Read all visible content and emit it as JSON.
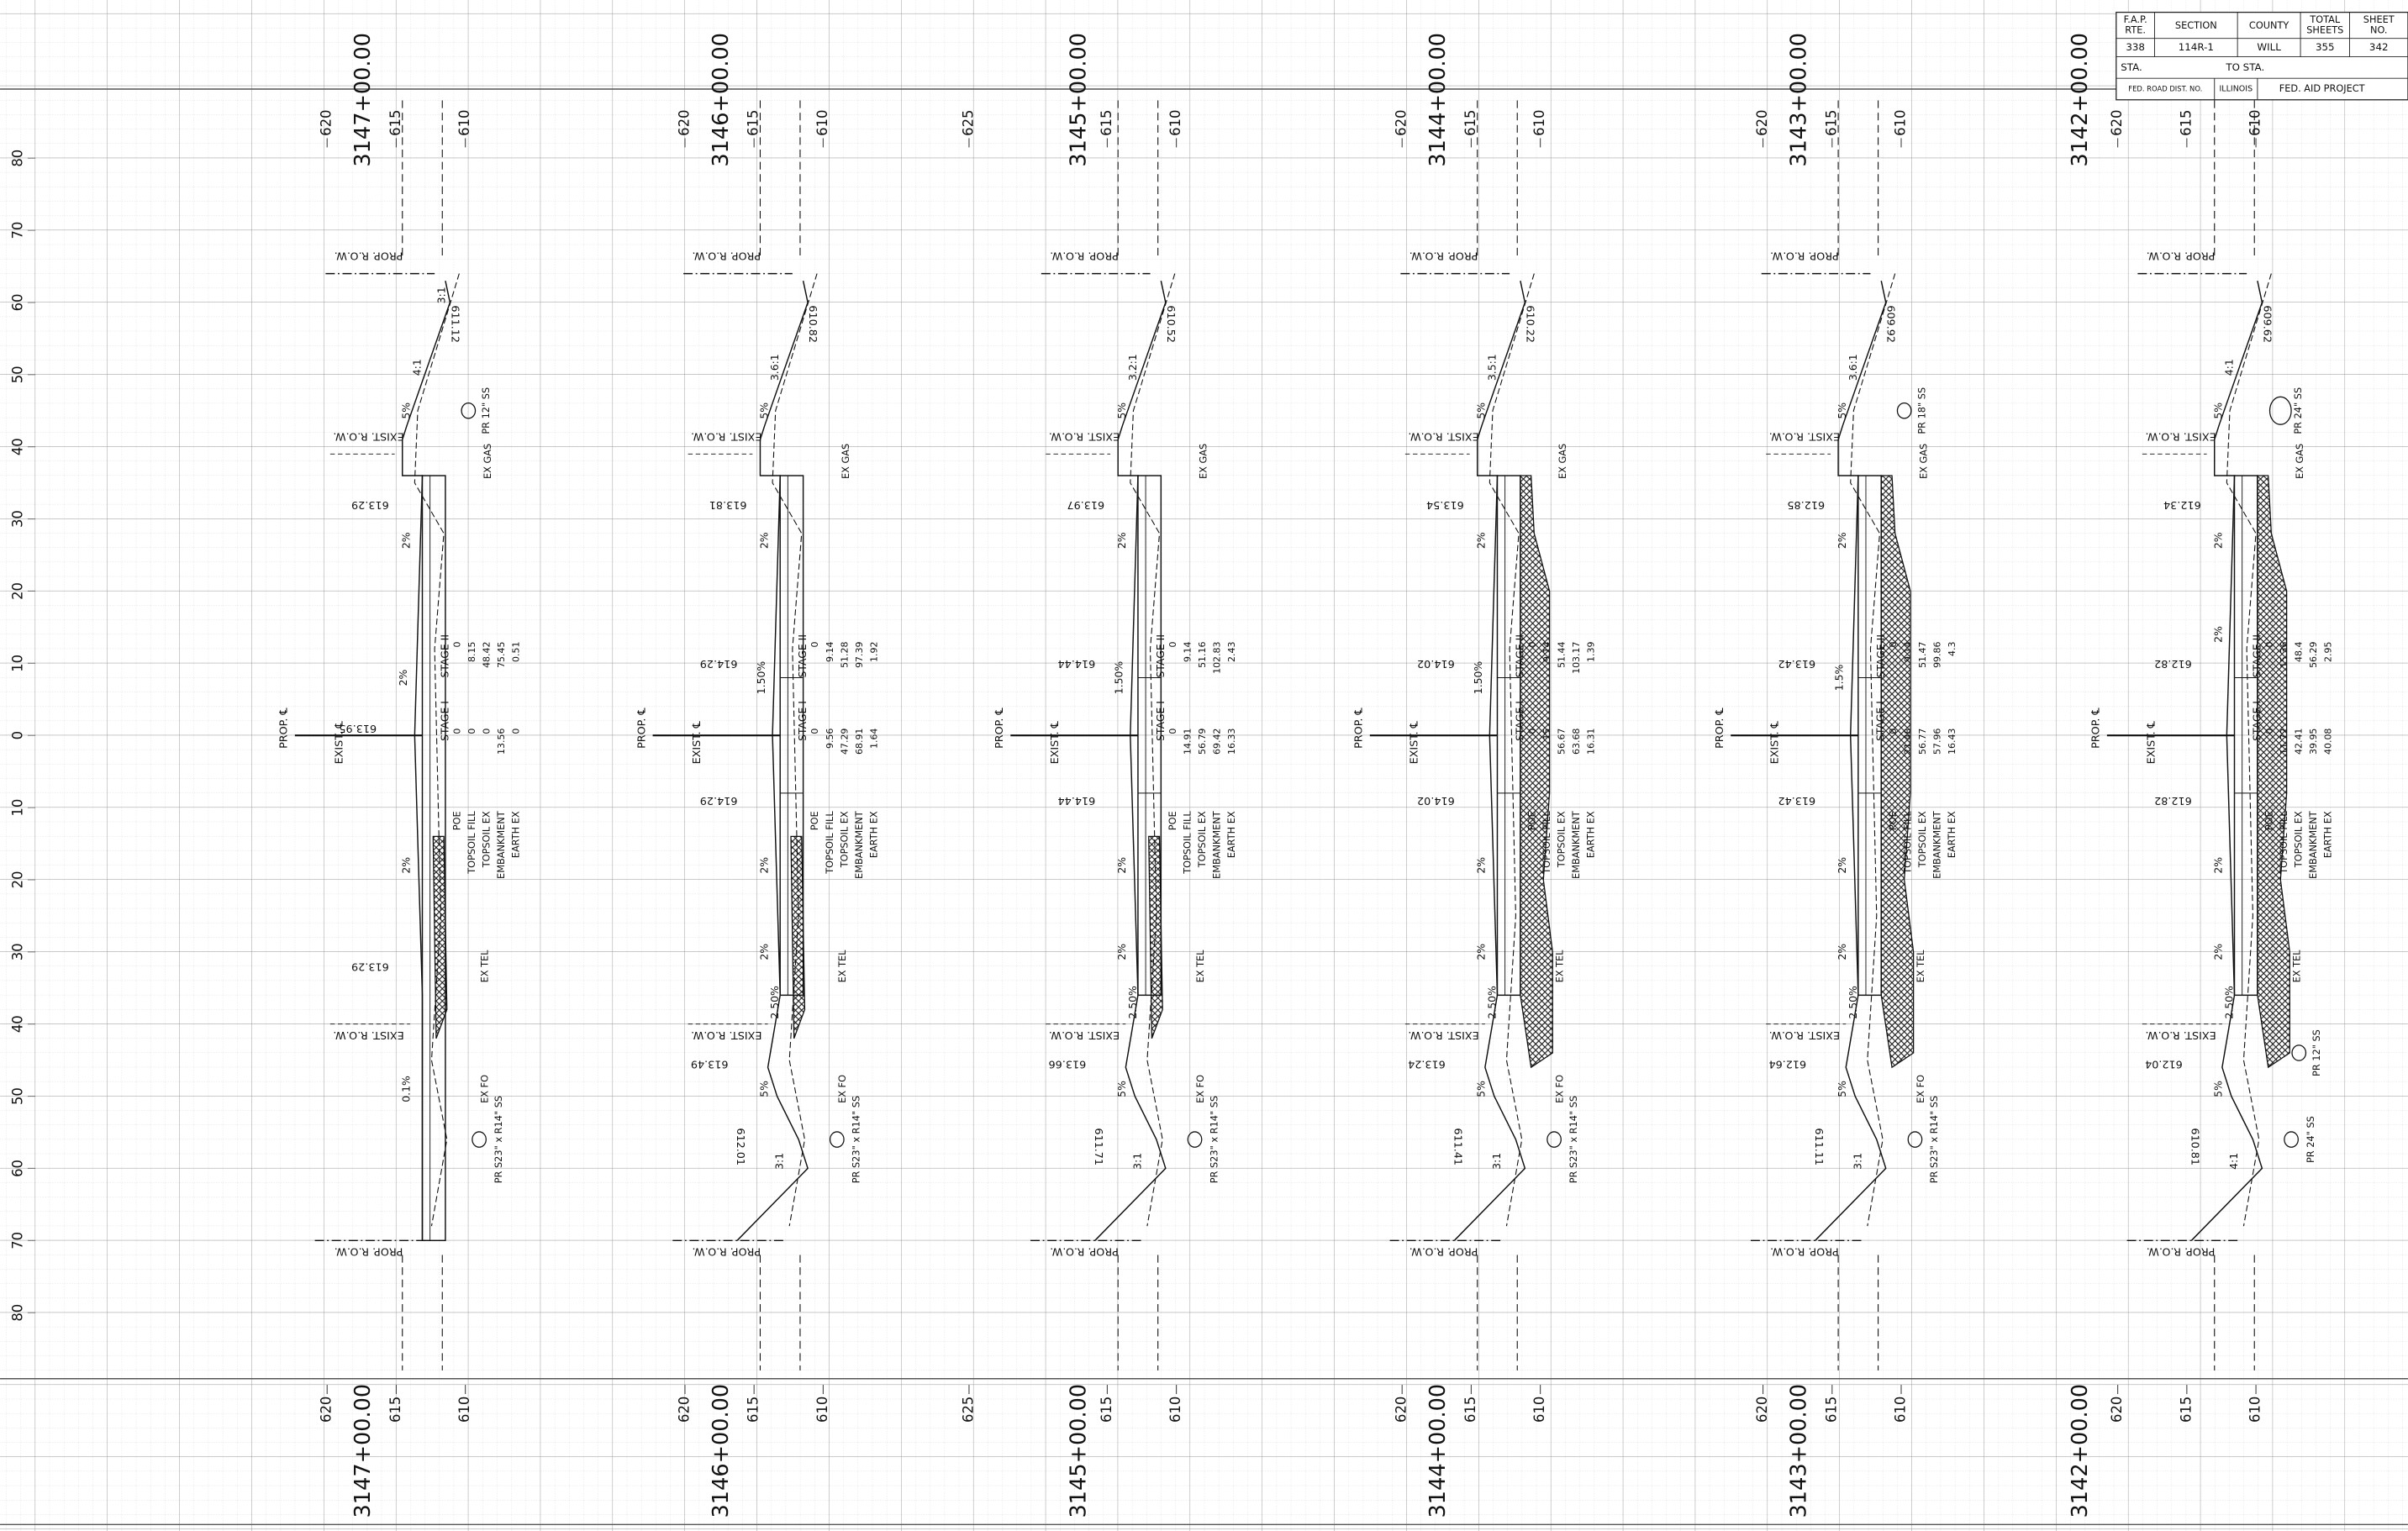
{
  "title_block": {
    "headers": [
      [
        "F.A.P.",
        "RTE."
      ],
      [
        "SECTION"
      ],
      [
        "COUNTY"
      ],
      [
        "TOTAL",
        "SHEETS"
      ],
      [
        "SHEET",
        "NO."
      ]
    ],
    "values": [
      "338",
      "114R-1",
      "WILL",
      "355",
      "342"
    ],
    "sta": "STA.",
    "to_sta": "TO STA.",
    "fed_road": "FED. ROAD DIST. NO.",
    "state": "ILLINOIS",
    "project": "FED. AID PROJECT"
  },
  "offset_ticks": [
    80,
    70,
    60,
    50,
    40,
    30,
    20,
    10,
    0,
    10,
    20,
    30,
    40,
    50,
    60,
    70,
    80
  ],
  "sections": [
    {
      "station": "3147+00.00",
      "elev_ticks": [
        620,
        615,
        610
      ],
      "labels": {
        "row_top": "PROP. R.O.W.",
        "row_bottom": "PROP. R.O.W.",
        "exist_row_top": "EXIST. R.O.W.",
        "exist_row_bottom": "EXIST. R.O.W.",
        "prop_cl": "PROP. ℄",
        "exist_cl": "EXIST. ℄"
      },
      "elevations": {
        "top": "611.12",
        "upper_left": "613.29",
        "center": "613.95",
        "lower_left": "613.29"
      },
      "slopes": {
        "fill_tip": "3:1",
        "fill_top": "4:1",
        "shoulder_top": "5%",
        "lane_top": "2%",
        "crown": "2%",
        "lane_low": "2%",
        "shoulder_bottom": "0.1%"
      },
      "utilities": {
        "util_top": "PR 12\" SS",
        "gas": "EX GAS",
        "tel": "EX TEL",
        "fo": "EX FO",
        "util_bottom": "PR S23\" x R14\" SS"
      },
      "stage_labels": {
        "stage_i": "STAGE I",
        "stage_ii": "STAGE II"
      },
      "quantities": {
        "labels": [
          "POE",
          "TOPSOIL FILL",
          "TOPSOIL EX",
          "EMBANKMENT",
          "EARTH EX"
        ],
        "stage_i": [
          0,
          0,
          0,
          13.56,
          0
        ],
        "stage_ii": [
          0,
          8.15,
          48.42,
          75.45,
          0.51
        ]
      }
    },
    {
      "station": "3146+00.00",
      "elev_ticks": [
        620,
        615,
        610
      ],
      "labels": {
        "row_top": "PROP. R.O.W.",
        "row_bottom": "PROP. R.O.W.",
        "exist_row_top": "EXIST. R.O.W.",
        "exist_row_bottom": "EXIST. R.O.W.",
        "prop_cl": "PROP. ℄",
        "exist_cl": "EXIST. ℄"
      },
      "elevations": {
        "top": "610.82",
        "upper_left": "613.81",
        "upper": "614.29",
        "lower": "614.29",
        "lower_shoulder": "613.49",
        "bottom": "612.01"
      },
      "slopes": {
        "fill_top": "3.6:1",
        "shoulder_top": "5%",
        "lane_top": "2%",
        "crown": "1.50%",
        "lane_low": "2%",
        "lane_low2": "2%",
        "gutter": "2.50%",
        "shoulder_bottom": "5%",
        "fill_bottom": "3:1"
      },
      "utilities": {
        "gas": "EX GAS",
        "tel": "EX TEL",
        "fo": "EX FO",
        "util_bottom": "PR S23\" x R14\" SS"
      },
      "stage_labels": {
        "stage_i": "STAGE I",
        "stage_ii": "STAGE II"
      },
      "quantities": {
        "labels": [
          "POE",
          "TOPSOIL FILL",
          "TOPSOIL EX",
          "EMBANKMENT",
          "EARTH EX"
        ],
        "stage_i": [
          0,
          9.56,
          47.29,
          68.91,
          1.64
        ],
        "stage_ii": [
          0,
          9.14,
          51.28,
          97.39,
          1.92
        ]
      }
    },
    {
      "station": "3145+00.00",
      "elev_ticks": [
        625,
        615,
        610
      ],
      "labels": {
        "row_top": "PROP. R.O.W.",
        "row_bottom": "PROP. R.O.W.",
        "exist_row_top": "EXIST. R.O.W.",
        "exist_row_bottom": "EXIST. R.O.W.",
        "prop_cl": "PROP. ℄",
        "exist_cl": "EXIST. ℄"
      },
      "elevations": {
        "top": "610.52",
        "upper_left": "613.97",
        "upper": "614.44",
        "lower": "614.44",
        "lower_shoulder": "613.66",
        "bottom": "611.71"
      },
      "slopes": {
        "fill_top": "3.2:1",
        "shoulder_top": "5%",
        "lane_top": "2%",
        "crown": "1.50%",
        "lane_low": "2%",
        "lane_low2": "2%",
        "gutter": "2.50%",
        "shoulder_bottom": "5%",
        "fill_bottom": "3:1"
      },
      "utilities": {
        "gas": "EX GAS",
        "tel": "EX TEL",
        "fo": "EX FO",
        "util_bottom": "PR S23\" x R14\" SS"
      },
      "stage_labels": {
        "stage_i": "STAGE I",
        "stage_ii": "STAGE II"
      },
      "quantities": {
        "labels": [
          "POE",
          "TOPSOIL FILL",
          "TOPSOIL EX",
          "EMBANKMENT",
          "EARTH EX"
        ],
        "stage_i": [
          0,
          14.91,
          56.79,
          69.42,
          16.33
        ],
        "stage_ii": [
          0,
          9.14,
          51.16,
          102.83,
          2.43
        ]
      }
    },
    {
      "station": "3144+00.00",
      "elev_ticks": [
        620,
        615,
        610
      ],
      "labels": {
        "row_top": "PROP. R.O.W.",
        "row_bottom": "PROP. R.O.W.",
        "exist_row_top": "EXIST. R.O.W.",
        "exist_row_bottom": "EXIST. R.O.W.",
        "prop_cl": "PROP. ℄",
        "exist_cl": "EXIST. ℄"
      },
      "elevations": {
        "top": "610.22",
        "upper_left": "613.54",
        "upper": "614.02",
        "lower": "614.02",
        "lower_shoulder": "613.24",
        "bottom": "611.41"
      },
      "slopes": {
        "fill_top": "3.5:1",
        "shoulder_top": "5%",
        "lane_top": "2%",
        "crown": "1.50%",
        "lane_low": "2%",
        "lane_low2": "2%",
        "gutter": "2.50%",
        "shoulder_bottom": "5%",
        "fill_bottom": "3:1"
      },
      "utilities": {
        "gas": "EX GAS",
        "tel": "EX TEL",
        "fo": "EX FO",
        "util_bottom": "PR S23\" x R14\" SS"
      },
      "stage_labels": {
        "stage_i": "STAGE I",
        "stage_ii": "STAGE II"
      },
      "quantities": {
        "labels": [
          "POE",
          "TOPSOIL FILL",
          "TOPSOIL EX",
          "EMBANKMENT",
          "EARTH EX"
        ],
        "stage_i": [
          0,
          15,
          56.67,
          63.68,
          16.31
        ],
        "stage_ii": [
          0,
          9.14,
          51.44,
          103.17,
          1.39
        ]
      }
    },
    {
      "station": "3143+00.00",
      "elev_ticks": [
        620,
        615,
        610
      ],
      "labels": {
        "row_top": "PROP. R.O.W.",
        "row_bottom": "PROP. R.O.W.",
        "exist_row_top": "EXIST. R.O.W.",
        "exist_row_bottom": "EXIST. R.O.W.",
        "prop_cl": "PROP. ℄",
        "exist_cl": "EXIST. ℄"
      },
      "elevations": {
        "top": "609.92",
        "upper_left": "612.85",
        "upper": "613.42",
        "lower": "613.42",
        "lower_shoulder": "612.64",
        "bottom": "611.11"
      },
      "slopes": {
        "fill_top": "3.6:1",
        "shoulder_top": "5%",
        "lane_top": "2%",
        "crown": "1.5%",
        "lane_low": "2%",
        "lane_low2": "2%",
        "gutter": "2.50%",
        "shoulder_bottom": "5%",
        "fill_bottom": "3:1"
      },
      "utilities": {
        "util_top": "PR 18\" SS",
        "gas": "EX GAS",
        "tel": "EX TEL",
        "fo": "EX FO",
        "util_bottom": "PR S23\" x R14\" SS"
      },
      "stage_labels": {
        "stage_i": "STAGE I",
        "stage_ii": "STAGE II"
      },
      "quantities": {
        "labels": [
          "POE",
          "TOPSOIL FILL",
          "TOPSOIL EX",
          "EMBANKMENT",
          "EARTH EX"
        ],
        "stage_i": [
          0,
          21.48,
          56.77,
          57.96,
          16.43
        ],
        "stage_ii": [
          0,
          9.14,
          51.47,
          99.86,
          4.3
        ]
      }
    },
    {
      "station": "3142+00.00",
      "elev_ticks": [
        620,
        615,
        610
      ],
      "labels": {
        "row_top": "PROP. R.O.W.",
        "row_bottom": "PROP. R.O.W.",
        "exist_row_top": "EXIST. R.O.W.",
        "exist_row_bottom": "EXIST. R.O.W.",
        "prop_cl": "PROP. ℄",
        "exist_cl": "EXIST. ℄"
      },
      "elevations": {
        "top": "609.62",
        "upper_left": "612.34",
        "upper": "612.82",
        "lower": "612.82",
        "lower_shoulder": "612.04",
        "bottom": "610.81"
      },
      "slopes": {
        "fill_top": "4:1",
        "shoulder_top": "5%",
        "lane_top": "2%",
        "lane_mid": "2%",
        "lane_low": "2%",
        "lane_low2": "2%",
        "gutter": "2.50%",
        "shoulder_bottom": "5%",
        "fill_bottom": "4:1"
      },
      "utilities": {
        "util_top": "PR 24\" SS",
        "gas": "EX GAS",
        "tel": "EX TEL",
        "util_mid": "PR 12\" SS",
        "util_bottom": "PR 24\" SS"
      },
      "stage_labels": {
        "stage_i": "STAGE I",
        "stage_ii": "STAGE II"
      },
      "quantities": {
        "labels": [
          "POE",
          "TOPSOIL FILL",
          "TOPSOIL EX",
          "EMBANKMENT",
          "EARTH EX"
        ],
        "stage_i": [
          0,
          11.72,
          42.41,
          39.95,
          40.08
        ],
        "stage_ii": [
          0,
          15.36,
          48.4,
          56.29,
          2.95
        ]
      }
    }
  ]
}
